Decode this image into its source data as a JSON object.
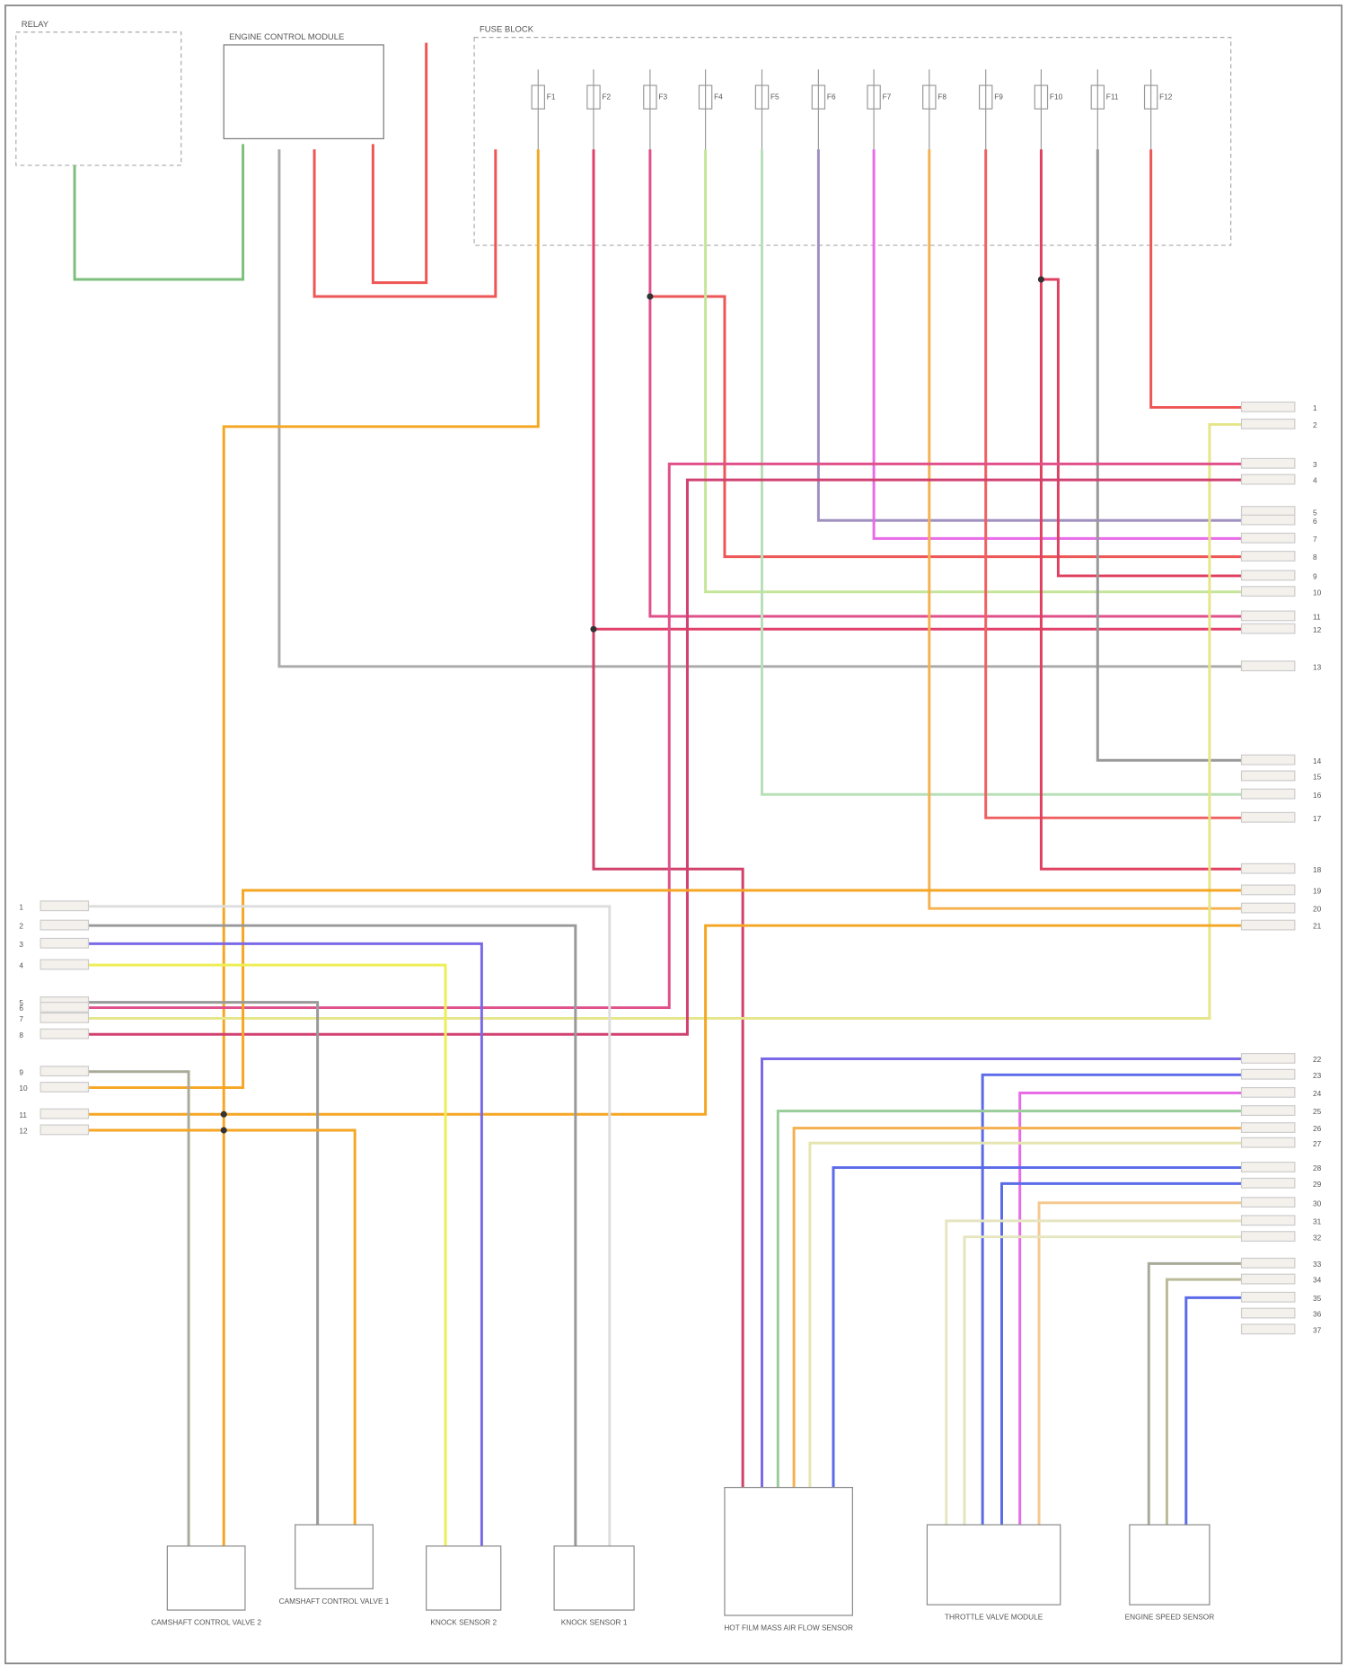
{
  "components": [
    {
      "label": "CAMSHAFT CONTROL VALVE 2"
    },
    {
      "label": "CAMSHAFT CONTROL VALVE 1"
    },
    {
      "label": "KNOCK SENSOR 2"
    },
    {
      "label": "KNOCK SENSOR 1"
    },
    {
      "label": "HOT FILM MASS AIR FLOW SENSOR"
    },
    {
      "label": "THROTTLE VALVE MODULE"
    },
    {
      "label": "ENGINE SPEED SENSOR"
    }
  ],
  "top_boxes": [
    {
      "label": "RELAY"
    },
    {
      "label": "ENGINE CONTROL MODULE"
    },
    {
      "label": "FUSE BLOCK"
    }
  ],
  "fuses": [
    "F1",
    "F2",
    "F3",
    "F4",
    "F5",
    "F6",
    "F7",
    "F8",
    "F9",
    "F10",
    "F11",
    "F12"
  ],
  "right_pins": [
    "1",
    "2",
    "3",
    "4",
    "5",
    "6",
    "7",
    "8",
    "9",
    "10",
    "11",
    "12",
    "13",
    "14",
    "15",
    "16",
    "17",
    "18",
    "19",
    "20",
    "21",
    "22",
    "23",
    "24",
    "25",
    "26",
    "27",
    "28",
    "29",
    "30",
    "31",
    "32",
    "33",
    "34",
    "35",
    "36",
    "37"
  ],
  "left_pins": [
    "1",
    "2",
    "3",
    "4",
    "5",
    "6",
    "7",
    "8",
    "9",
    "10",
    "11",
    "12"
  ]
}
